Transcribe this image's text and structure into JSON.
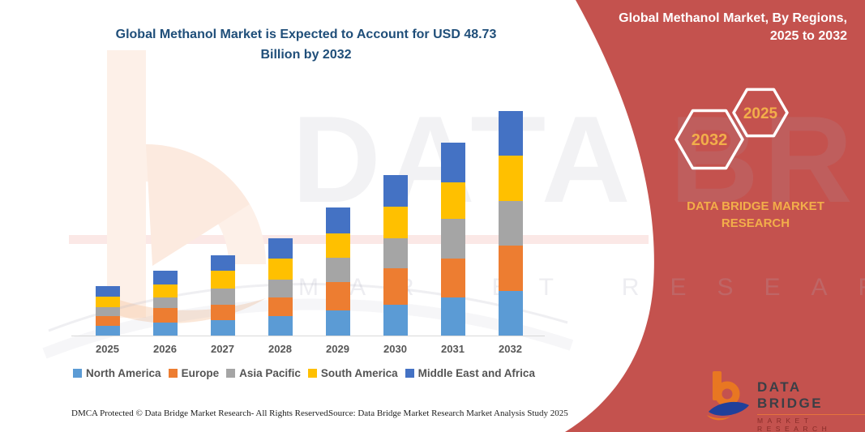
{
  "main_title": {
    "line1": "Global Methanol Market is Expected to Account for USD 48.73",
    "line2": "Billion by 2032"
  },
  "side_panel": {
    "title_line1": "Global Methanol Market, By Regions,",
    "title_line2": "2025 to 2032",
    "hexagon_back_label": "2032",
    "hexagon_front_label": "2025",
    "brand_caption": "DATA BRIDGE MARKET RESEARCH",
    "background_color": "#C4524E",
    "accent_gold": "#F2AE4A"
  },
  "logo": {
    "name": "DATA BRIDGE",
    "subtitle": "MARKET RESEARCH"
  },
  "watermark": {
    "big_text": "DATA BRIDGE",
    "sub_text": "MARKET RESEARCH"
  },
  "footer": {
    "left": "DMCA Protected © Data Bridge Market Research-  All Rights Reserved.",
    "right": "Source: Data Bridge Market Research  Market Analysis Study 2025"
  },
  "chart_data": {
    "type": "bar",
    "stacked": true,
    "title": "Global Methanol Market is Expected to Account for USD 48.73 Billion by 2032",
    "unit": "USD Billion",
    "categories": [
      "2025",
      "2026",
      "2027",
      "2028",
      "2029",
      "2030",
      "2031",
      "2032"
    ],
    "series": [
      {
        "name": "North America",
        "color": "#5B9BD5",
        "values": [
          2.1,
          2.9,
          3.4,
          4.2,
          5.4,
          6.7,
          8.3,
          9.6
        ]
      },
      {
        "name": "Europe",
        "color": "#ED7D31",
        "values": [
          2.1,
          3.1,
          3.3,
          4.1,
          6.2,
          7.9,
          8.5,
          9.9
        ]
      },
      {
        "name": "Asia Pacific",
        "color": "#A5A5A5",
        "values": [
          2.0,
          2.2,
          3.5,
          3.9,
          5.3,
          6.6,
          8.5,
          9.73
        ]
      },
      {
        "name": "South America",
        "color": "#FFC000",
        "values": [
          2.2,
          2.9,
          3.8,
          4.6,
          5.3,
          6.7,
          8.0,
          9.8
        ]
      },
      {
        "name": "Middle East and Africa",
        "color": "#4472C4",
        "values": [
          2.3,
          2.9,
          3.4,
          4.3,
          5.7,
          6.9,
          8.5,
          9.7
        ]
      }
    ],
    "totals_estimated": [
      10.7,
      14.0,
      17.4,
      21.1,
      27.9,
      34.8,
      41.8,
      48.73
    ],
    "ylim": [
      0,
      50
    ],
    "axis": {
      "x_visible": true,
      "y_visible": false,
      "gridlines": false
    },
    "legend_position": "bottom"
  }
}
